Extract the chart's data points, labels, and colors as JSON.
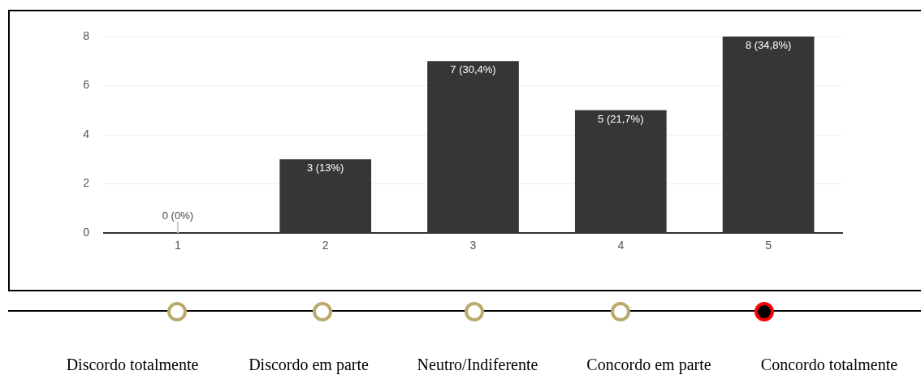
{
  "chart_data": {
    "type": "bar",
    "categories": [
      "1",
      "2",
      "3",
      "4",
      "5"
    ],
    "values": [
      0,
      3,
      7,
      5,
      8
    ],
    "value_labels": [
      "0 (0%)",
      "3 (13%)",
      "7 (30,4%)",
      "5 (21,7%)",
      "8 (34,8%)"
    ],
    "color": "#363636",
    "ylim": [
      0,
      8
    ],
    "yticks": [
      0,
      2,
      4,
      6,
      8
    ],
    "grid": "y",
    "legend": false,
    "annotations": [
      "Discordo totalmente",
      "Discordo em parte",
      "Neutro/Indiferente",
      "Concordo em parte",
      "Concordo totalmente"
    ]
  }
}
